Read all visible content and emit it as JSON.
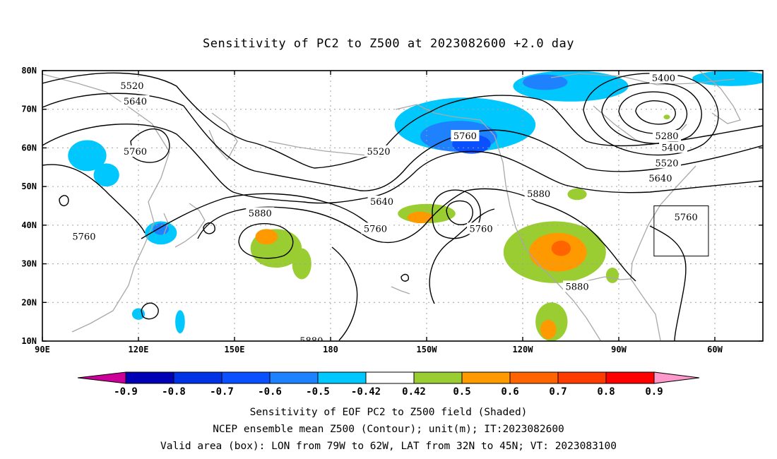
{
  "figure": {
    "title": "Sensitivity of PC2 to Z500 at 2023082600 +2.0 day",
    "captions": [
      "Sensitivity of EOF PC2 to Z500 field (Shaded)",
      "NCEP ensemble mean Z500 (Contour); unit(m); IT:2023082600",
      "Valid area (box): LON from 79W to 62W, LAT from 32N to 45N; VT: 2023083100"
    ]
  },
  "axes": {
    "lon_labels": [
      "90E",
      "120E",
      "150E",
      "180",
      "150W",
      "120W",
      "90W",
      "60W"
    ],
    "lat_labels": [
      "80N",
      "70N",
      "60N",
      "50N",
      "40N",
      "30N",
      "20N",
      "10N"
    ],
    "lon_range_east": [
      90,
      315
    ],
    "lat_range": [
      10,
      80
    ],
    "grid": true
  },
  "colorbar": {
    "labels": [
      "-0.9",
      "-0.8",
      "-0.7",
      "-0.6",
      "-0.5",
      "-0.42",
      "0.42",
      "0.5",
      "0.6",
      "0.7",
      "0.8",
      "0.9"
    ],
    "colors": [
      "#cc0099",
      "#0000b4",
      "#0032e6",
      "#0a50ff",
      "#1e82ff",
      "#00c8ff",
      "#ffffff",
      "#9acd32",
      "#ff9900",
      "#ff6400",
      "#ff3c00",
      "#ff0000",
      "#ff99cc"
    ]
  },
  "valid_box": {
    "lon": [
      -79,
      -62
    ],
    "lat": [
      32,
      45
    ]
  },
  "contour_labels": [
    {
      "text": "5520",
      "lon": 118,
      "lat": 76
    },
    {
      "text": "5640",
      "lon": 119,
      "lat": 72
    },
    {
      "text": "5760",
      "lon": 119,
      "lat": 59
    },
    {
      "text": "5760",
      "lon": 103,
      "lat": 37
    },
    {
      "text": "5880",
      "lon": 158,
      "lat": 43
    },
    {
      "text": "5880",
      "lon": 174,
      "lat": 10
    },
    {
      "text": "5520",
      "lon": 195,
      "lat": 59
    },
    {
      "text": "5640",
      "lon": 196,
      "lat": 46
    },
    {
      "text": "5760",
      "lon": 194,
      "lat": 39
    },
    {
      "text": "5760",
      "lon": 222,
      "lat": 63
    },
    {
      "text": "5760",
      "lon": 227,
      "lat": 39
    },
    {
      "text": "5880",
      "lon": 245,
      "lat": 48
    },
    {
      "text": "5880",
      "lon": 257,
      "lat": 24
    },
    {
      "text": "5400",
      "lon": 284,
      "lat": 78
    },
    {
      "text": "5280",
      "lon": 285,
      "lat": 63
    },
    {
      "text": "5400",
      "lon": 287,
      "lat": 60
    },
    {
      "text": "5520",
      "lon": 285,
      "lat": 56
    },
    {
      "text": "5640",
      "lon": 283,
      "lat": 52
    },
    {
      "text": "5760",
      "lon": 291,
      "lat": 42
    }
  ],
  "shaded_regions": [
    {
      "cls": -0.45,
      "lon": 104,
      "lat": 58,
      "rx": 6,
      "ry": 4
    },
    {
      "cls": -0.45,
      "lon": 110,
      "lat": 53,
      "rx": 4,
      "ry": 3
    },
    {
      "cls": -0.45,
      "lon": 127,
      "lat": 38,
      "rx": 5,
      "ry": 3
    },
    {
      "cls": -0.55,
      "lon": 127,
      "lat": 39,
      "rx": 2.5,
      "ry": 1.5
    },
    {
      "cls": -0.45,
      "lon": 120,
      "lat": 17,
      "rx": 2,
      "ry": 1.5
    },
    {
      "cls": -0.45,
      "lon": 133,
      "lat": 15,
      "rx": 1.5,
      "ry": 3
    },
    {
      "cls": -0.45,
      "lon": 222,
      "lat": 66,
      "rx": 22,
      "ry": 7
    },
    {
      "cls": -0.55,
      "lon": 220,
      "lat": 63,
      "rx": 12,
      "ry": 4
    },
    {
      "cls": -0.65,
      "lon": 224,
      "lat": 61,
      "rx": 6,
      "ry": 2.5
    },
    {
      "cls": -0.45,
      "lon": 255,
      "lat": 76,
      "rx": 18,
      "ry": 4
    },
    {
      "cls": -0.55,
      "lon": 247,
      "lat": 77,
      "rx": 7,
      "ry": 2
    },
    {
      "cls": -0.45,
      "lon": 305,
      "lat": 78,
      "rx": 12,
      "ry": 2
    },
    {
      "cls": 0.45,
      "lon": 163,
      "lat": 34,
      "rx": 8,
      "ry": 5
    },
    {
      "cls": 0.55,
      "lon": 160,
      "lat": 37,
      "rx": 3.5,
      "ry": 2
    },
    {
      "cls": 0.45,
      "lon": 171,
      "lat": 30,
      "rx": 3,
      "ry": 4
    },
    {
      "cls": 0.45,
      "lon": 210,
      "lat": 43,
      "rx": 9,
      "ry": 2.5
    },
    {
      "cls": 0.55,
      "lon": 208,
      "lat": 42,
      "rx": 4,
      "ry": 1.5
    },
    {
      "cls": 0.45,
      "lon": 250,
      "lat": 33,
      "rx": 16,
      "ry": 8
    },
    {
      "cls": 0.55,
      "lon": 251,
      "lat": 33,
      "rx": 9,
      "ry": 5
    },
    {
      "cls": 0.65,
      "lon": 252,
      "lat": 34,
      "rx": 3,
      "ry": 2
    },
    {
      "cls": 0.45,
      "lon": 249,
      "lat": 15,
      "rx": 5,
      "ry": 5
    },
    {
      "cls": 0.55,
      "lon": 248,
      "lat": 13,
      "rx": 2.5,
      "ry": 2.5
    },
    {
      "cls": 0.45,
      "lon": 257,
      "lat": 48,
      "rx": 3,
      "ry": 1.5
    },
    {
      "cls": 0.45,
      "lon": 268,
      "lat": 27,
      "rx": 2,
      "ry": 2
    },
    {
      "cls": 0.45,
      "lon": 285,
      "lat": 68,
      "rx": 1,
      "ry": 0.6
    }
  ]
}
